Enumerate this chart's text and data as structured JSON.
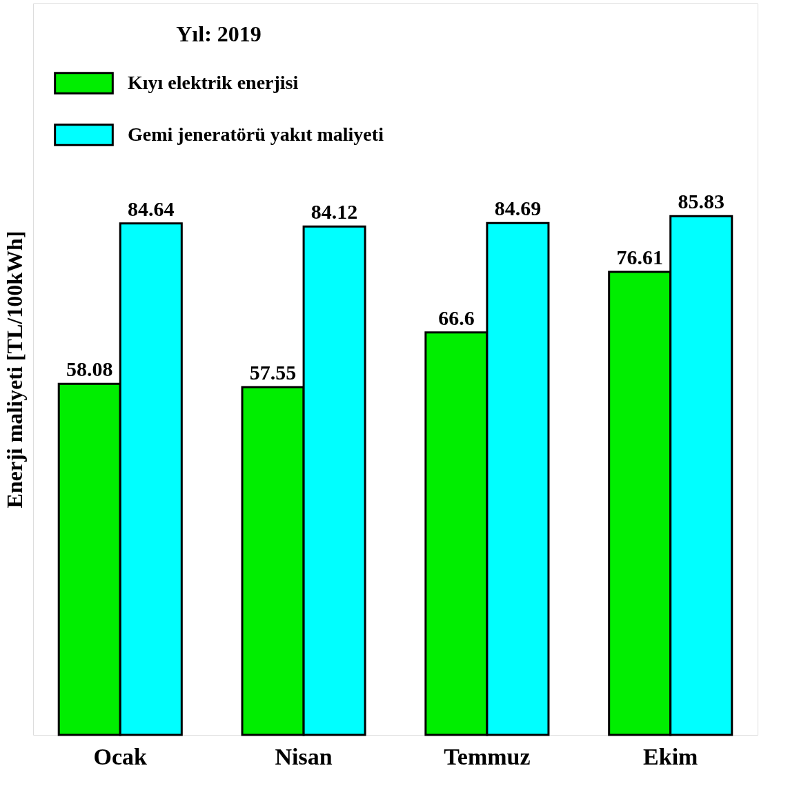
{
  "chart_data": {
    "type": "bar",
    "legend_title": "Yıl: 2019",
    "ylabel": "Enerji maliyeti [TL/100kWh]",
    "categories": [
      "Ocak",
      "Nisan",
      "Temmuz",
      "Ekim"
    ],
    "series": [
      {
        "name": "Kıyı elektrik enerjisi",
        "color": "#00ee00",
        "values": [
          58.08,
          57.55,
          66.6,
          76.61
        ]
      },
      {
        "name": "Gemi jeneratörü yakıt maliyeti",
        "color": "#00ffff",
        "values": [
          84.64,
          84.12,
          84.69,
          85.83
        ]
      }
    ],
    "data_labels": true,
    "legend": "top left",
    "grid": false,
    "tick_labels": "x"
  }
}
